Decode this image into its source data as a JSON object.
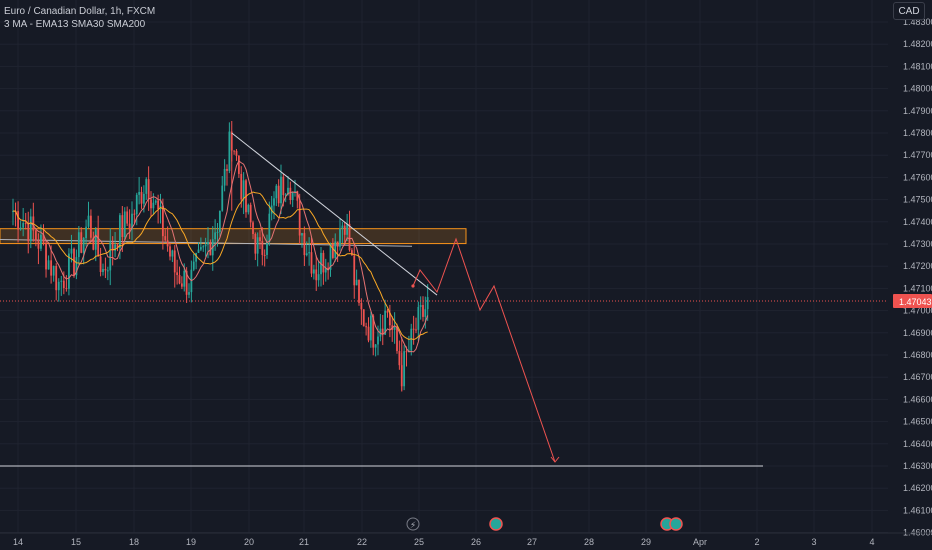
{
  "header": {
    "symbol_line": "Euro / Canadian Dollar, 1h, FXCM",
    "indicators_line": "3 MA - EMA13 SMA30 SMA200"
  },
  "currency_button": "CAD",
  "price_axis": {
    "labels": [
      "1.48300",
      "1.48200",
      "1.48100",
      "1.48000",
      "1.47900",
      "1.47800",
      "1.47700",
      "1.47600",
      "1.47500",
      "1.47400",
      "1.47300",
      "1.47200",
      "1.47100",
      "1.47000",
      "1.46900",
      "1.46800",
      "1.46700",
      "1.46600",
      "1.46500",
      "1.46400",
      "1.46300",
      "1.46200",
      "1.46100",
      "1.46000"
    ],
    "current_price_label": "1.47043"
  },
  "time_axis": {
    "labels": [
      "14",
      "15",
      "18",
      "19",
      "20",
      "21",
      "22",
      "25",
      "26",
      "27",
      "28",
      "29",
      "Apr",
      "2",
      "3",
      "4"
    ]
  },
  "colors": {
    "background": "#161a25",
    "up_candle": "#26a69a",
    "down_candle": "#ef5350",
    "projection": "#ef5350",
    "trendline": "#d1d4dc",
    "zone_border": "#f7931a",
    "ema13": "#e57373",
    "sma30": "#f9a825",
    "sma200": "#b0b3bb"
  },
  "chart_data": {
    "type": "candlestick",
    "symbol": "Euro / Canadian Dollar",
    "timeframe": "1h",
    "ylim": [
      1.46,
      1.4832
    ],
    "current_price": 1.47043,
    "x_ticks": [
      "14",
      "15",
      "18",
      "19",
      "20",
      "21",
      "22",
      "25",
      "26",
      "27",
      "28",
      "29",
      "Apr",
      "2",
      "3",
      "4"
    ],
    "close_path": [
      {
        "date": "Mar 14 00:00",
        "close": 1.4745
      },
      {
        "date": "Mar 14 06:00",
        "close": 1.4738
      },
      {
        "date": "Mar 14 12:00",
        "close": 1.4728
      },
      {
        "date": "Mar 14 18:00",
        "close": 1.4712
      },
      {
        "date": "Mar 15 00:00",
        "close": 1.4722
      },
      {
        "date": "Mar 15 06:00",
        "close": 1.474
      },
      {
        "date": "Mar 15 12:00",
        "close": 1.4718
      },
      {
        "date": "Mar 15 18:00",
        "close": 1.4735
      },
      {
        "date": "Mar 18 00:00",
        "close": 1.4742
      },
      {
        "date": "Mar 18 06:00",
        "close": 1.476
      },
      {
        "date": "Mar 18 12:00",
        "close": 1.474
      },
      {
        "date": "Mar 18 18:00",
        "close": 1.4718
      },
      {
        "date": "Mar 19 00:00",
        "close": 1.4712
      },
      {
        "date": "Mar 19 06:00",
        "close": 1.4725
      },
      {
        "date": "Mar 19 12:00",
        "close": 1.474
      },
      {
        "date": "Mar 19 18:00",
        "close": 1.478
      },
      {
        "date": "Mar 20 00:00",
        "close": 1.4745
      },
      {
        "date": "Mar 20 06:00",
        "close": 1.4725
      },
      {
        "date": "Mar 20 12:00",
        "close": 1.4748
      },
      {
        "date": "Mar 20 18:00",
        "close": 1.4762
      },
      {
        "date": "Mar 21 00:00",
        "close": 1.4735
      },
      {
        "date": "Mar 21 06:00",
        "close": 1.4718
      },
      {
        "date": "Mar 21 12:00",
        "close": 1.4728
      },
      {
        "date": "Mar 21 18:00",
        "close": 1.4742
      },
      {
        "date": "Mar 22 00:00",
        "close": 1.47
      },
      {
        "date": "Mar 22 06:00",
        "close": 1.469
      },
      {
        "date": "Mar 22 12:00",
        "close": 1.47
      },
      {
        "date": "Mar 22 18:00",
        "close": 1.4672
      },
      {
        "date": "Mar 25 00:00",
        "close": 1.4692
      },
      {
        "date": "Mar 25 06:00",
        "close": 1.4705
      }
    ],
    "resistance_zone": [
      1.4732,
      1.4736
    ],
    "support_line": 1.463,
    "trendline": [
      {
        "date": "Mar 19 18:00",
        "price": 1.478
      },
      {
        "date": "Mar 25 18:00",
        "price": 1.4707
      }
    ],
    "sma200_line": [
      {
        "date": "Mar 14 00:00",
        "price": 1.4732
      },
      {
        "date": "Mar 25 00:00",
        "price": 1.4729
      }
    ],
    "projection": [
      {
        "date": "Mar 25 06:00",
        "price": 1.4711
      },
      {
        "date": "Mar 25 06:00",
        "price": 1.472
      },
      {
        "date": "Mar 25 12:00",
        "price": 1.4714
      },
      {
        "date": "Mar 25 18:00",
        "price": 1.4733
      },
      {
        "date": "Mar 26 06:00",
        "price": 1.4701
      },
      {
        "date": "Mar 26 12:00",
        "price": 1.4711
      },
      {
        "date": "Mar 27 12:00",
        "price": 1.463
      }
    ]
  }
}
